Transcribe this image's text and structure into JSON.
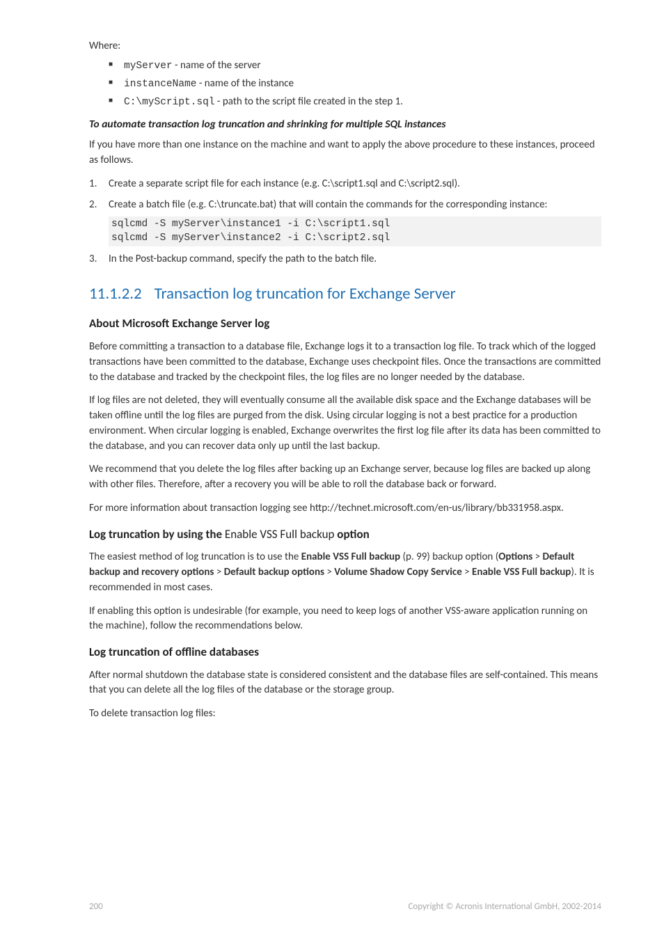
{
  "where": {
    "label": "Where:",
    "items": [
      {
        "code": "myServer",
        "text": " - name of the server"
      },
      {
        "code": "instanceName",
        "text": " - name of the instance"
      },
      {
        "code": "C:\\myScript.sql",
        "text": " - path to the script file created in the step 1."
      }
    ]
  },
  "automate": {
    "heading": "To automate transaction log truncation and shrinking for multiple SQL instances",
    "intro": "If you have more than one instance on the machine and want to apply the above procedure to these instances, proceed as follows.",
    "steps": {
      "s1": "Create a separate script file for each instance (e.g. C:\\script1.sql and C:\\script2.sql).",
      "s2": "Create a batch file (e.g. C:\\truncate.bat) that will contain the commands for the corresponding instance:",
      "code": "sqlcmd -S myServer\\instance1 -i C:\\script1.sql\nsqlcmd -S myServer\\instance2 -i C:\\script2.sql",
      "s3": "In the Post-backup command, specify the path to the batch file."
    }
  },
  "section": {
    "num": "11.1.2.2",
    "title": "Transaction log truncation for Exchange Server"
  },
  "about": {
    "heading": "About Microsoft Exchange Server log",
    "p1": "Before committing a transaction to a database file, Exchange logs it to a transaction log file. To track which of the logged transactions have been committed to the database, Exchange uses checkpoint files. Once the transactions are committed to the database and tracked by the checkpoint files, the log files are no longer needed by the database.",
    "p2": "If log files are not deleted, they will eventually consume all the available disk space and the Exchange databases will be taken offline until the log files are purged from the disk. Using circular logging is not a best practice for a production environment. When circular logging is enabled, Exchange overwrites the first log file after its data has been committed to the database, and you can recover data only up until the last backup.",
    "p3": "We recommend that you delete the log files after backing up an Exchange server, because log files are backed up along with other files. Therefore, after a recovery you will be able to roll the database back or forward.",
    "p4": "For more information about transaction logging see http://technet.microsoft.com/en-us/library/bb331958.aspx."
  },
  "enable_vss": {
    "heading_a": "Log truncation by using the ",
    "heading_b": "Enable VSS Full backup",
    "heading_c": " option",
    "p1_a": "The easiest method of log truncation is to use the ",
    "p1_b": "Enable VSS Full backup",
    "p1_c": " (p. 99) backup option (",
    "p1_d": "Options",
    "p1_e": " > ",
    "p1_f": "Default backup and recovery options",
    "p1_g": " > ",
    "p1_h": "Default backup options",
    "p1_i": " > ",
    "p1_j": "Volume Shadow Copy Service",
    "p1_k": " > ",
    "p1_l": "Enable VSS Full backup",
    "p1_m": "). It is recommended in most cases.",
    "p2": "If enabling this option is undesirable (for example, you need to keep logs of another VSS-aware application running on the machine), follow the recommendations below."
  },
  "offline": {
    "heading": "Log truncation of offline databases",
    "p1": "After normal shutdown the database state is considered consistent and the database files are self-contained. This means that you can delete all the log files of the database or the storage group.",
    "p2": "To delete transaction log files:"
  },
  "footer": {
    "page": "200",
    "copyright": "Copyright © Acronis International GmbH, 2002-2014"
  }
}
